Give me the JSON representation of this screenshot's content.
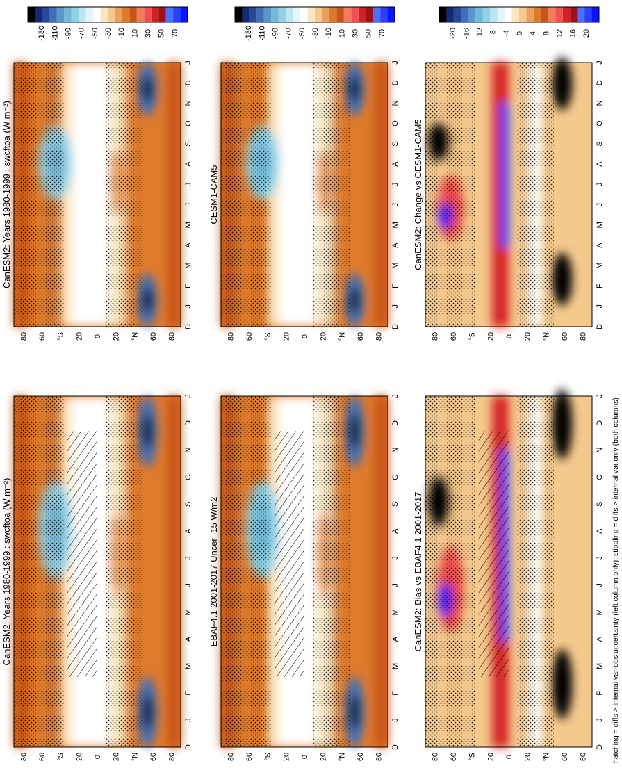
{
  "figure": {
    "footnote": "hatching = diffs > internal var-obs uncertainty (left column only); stippling = diffs > internal var only (both columns)"
  },
  "colorscales": {
    "climatology": {
      "labels": [
        "70",
        "50",
        "30",
        "10",
        "-10",
        "-30",
        "-50",
        "-70",
        "-90",
        "-110",
        "-130"
      ],
      "colors": [
        "#0a14ff",
        "#2a40ff",
        "#4a70ff",
        "#a0101c",
        "#d42020",
        "#f05050",
        "#f47c5c",
        "#c85418",
        "#de7a2c",
        "#eba060",
        "#f5c98e",
        "#fbe6c2",
        "#ffffff",
        "#e2f5fa",
        "#bbe6f2",
        "#8fd1e6",
        "#72b8d8",
        "#5a96cc",
        "#3f6fb8",
        "#27489d",
        "#122a74",
        "#000000"
      ]
    },
    "difference": {
      "labels": [
        "20",
        "16",
        "12",
        "8",
        "4",
        "0",
        "-4",
        "-8",
        "-12",
        "-16",
        "-20"
      ],
      "colors": [
        "#0a14ff",
        "#2a40ff",
        "#4a70ff",
        "#a0101c",
        "#d42020",
        "#f05050",
        "#f47c5c",
        "#c85418",
        "#de7a2c",
        "#eba060",
        "#f5c98e",
        "#fbe6c2",
        "#ffffff",
        "#e2f5fa",
        "#bbe6f2",
        "#8fd1e6",
        "#72b8d8",
        "#5a96cc",
        "#3f6fb8",
        "#27489d",
        "#122a74",
        "#000000"
      ]
    }
  },
  "chart_data": [
    {
      "type": "heatmap",
      "title": "CanESM2: Years 1980-1999 : swcftoa (W m⁻²)",
      "variable": "swcftoa",
      "units": "W m-2",
      "x_ticks": [
        "D",
        "J",
        "F",
        "M",
        "A",
        "M",
        "J",
        "J",
        "A",
        "S",
        "O",
        "N",
        "D",
        "J"
      ],
      "y_ticks": [
        "80",
        "60",
        "°N",
        "20",
        "0",
        "20",
        "°S",
        "60",
        "80"
      ],
      "colorscale": "climatology",
      "overlays": [
        "hatching",
        "stippling"
      ]
    },
    {
      "type": "heatmap",
      "title": "CanESM2: Years 1980-1999 : swcftoa (W m⁻²)",
      "variable": "swcftoa",
      "units": "W m-2",
      "x_ticks": [
        "D",
        "J",
        "F",
        "M",
        "A",
        "M",
        "J",
        "J",
        "A",
        "S",
        "O",
        "N",
        "D",
        "J"
      ],
      "y_ticks": [
        "80",
        "60",
        "°N",
        "20",
        "0",
        "20",
        "°S",
        "60",
        "80"
      ],
      "colorscale": "climatology",
      "overlays": [
        "stippling"
      ]
    },
    {
      "type": "heatmap",
      "title": "EBAF4.1 2001-2017 Uncer=15 W/m2",
      "x_ticks": [
        "D",
        "J",
        "F",
        "M",
        "A",
        "M",
        "J",
        "J",
        "A",
        "S",
        "O",
        "N",
        "D",
        "J"
      ],
      "y_ticks": [
        "80",
        "60",
        "°N",
        "20",
        "0",
        "20",
        "°S",
        "60",
        "80"
      ],
      "colorscale": "climatology",
      "overlays": [
        "hatching",
        "stippling"
      ]
    },
    {
      "type": "heatmap",
      "title": "CESM1-CAM5",
      "x_ticks": [
        "D",
        "J",
        "F",
        "M",
        "A",
        "M",
        "J",
        "J",
        "A",
        "S",
        "O",
        "N",
        "D",
        "J"
      ],
      "y_ticks": [
        "80",
        "60",
        "°N",
        "20",
        "0",
        "20",
        "°S",
        "60",
        "80"
      ],
      "colorscale": "climatology",
      "overlays": [
        "stippling"
      ]
    },
    {
      "type": "heatmap",
      "title": "CanESM2: Bias vs EBAF4.1 2001-2017",
      "x_ticks": [
        "D",
        "J",
        "F",
        "M",
        "A",
        "M",
        "J",
        "J",
        "A",
        "S",
        "O",
        "N",
        "D",
        "J"
      ],
      "y_ticks": [
        "80",
        "60",
        "°N",
        "20",
        "0",
        "20",
        "°S",
        "60",
        "80"
      ],
      "colorscale": "difference",
      "overlays": [
        "hatching",
        "stippling"
      ]
    },
    {
      "type": "heatmap",
      "title": "CanESM2: Change vs CESM1-CAM5",
      "x_ticks": [
        "D",
        "J",
        "F",
        "M",
        "A",
        "M",
        "J",
        "J",
        "A",
        "S",
        "O",
        "N",
        "D",
        "J"
      ],
      "y_ticks": [
        "80",
        "60",
        "°N",
        "20",
        "0",
        "20",
        "°S",
        "60",
        "80"
      ],
      "colorscale": "difference",
      "overlays": [
        "stippling"
      ]
    }
  ]
}
